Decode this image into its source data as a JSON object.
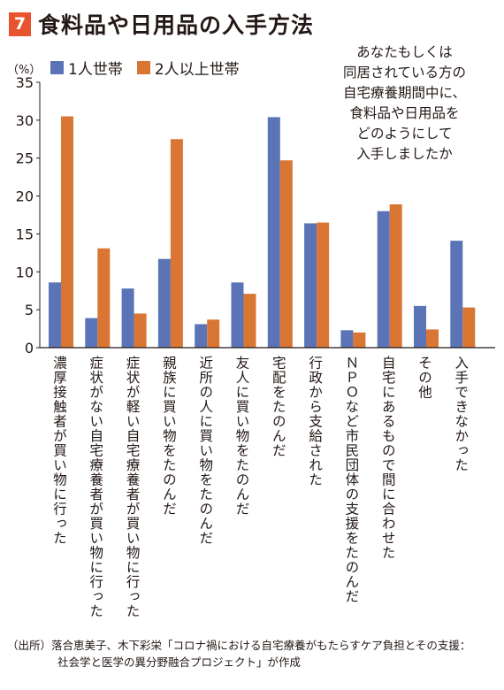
{
  "header": {
    "number": "7",
    "title": "食料品や日用品の入手方法"
  },
  "question": [
    "あなたもしくは",
    "同居されている方の",
    "自宅療養期間中に、",
    "食料品や日用品を",
    "どのようにして",
    "入手しましたか"
  ],
  "source": {
    "line1": "（出所）落合恵美子、木下彩栄「コロナ禍における自宅療養がもたらすケア負担とその支援：",
    "line2": "社会学と医学の異分野融合プロジェクト」が作成"
  },
  "colors": {
    "accent": "#e8542f",
    "series1": "#5b74b7",
    "series2": "#d97634"
  },
  "chart_data": {
    "type": "bar",
    "unit_label": "（%）",
    "ylim": [
      0,
      35
    ],
    "yticks": [
      0,
      5,
      10,
      15,
      20,
      25,
      30,
      35
    ],
    "categories": [
      "濃厚接触者が買い物に行った",
      "症状がない自宅療養者が買い物に行った",
      "症状が軽い自宅療養者が買い物に行った",
      "親族に買い物をたのんだ",
      "近所の人に買い物をたのんだ",
      "友人に買い物をたのんだ",
      "宅配をたのんだ",
      "行政から支給された",
      "ＮＰＯなど市民団体の支援をたのんだ",
      "自宅にあるもので間に合わせた",
      "その他",
      "入手できなかった"
    ],
    "series": [
      {
        "name": "1人世帯",
        "values": [
          8.6,
          3.9,
          7.8,
          11.7,
          3.1,
          8.6,
          30.4,
          16.4,
          2.3,
          18.0,
          5.5,
          14.1
        ]
      },
      {
        "name": "2人以上世帯",
        "values": [
          30.5,
          13.1,
          4.5,
          27.5,
          3.7,
          7.1,
          24.7,
          16.5,
          2.0,
          18.9,
          2.4,
          5.3
        ]
      }
    ],
    "legend": "top-left",
    "grid": false
  }
}
